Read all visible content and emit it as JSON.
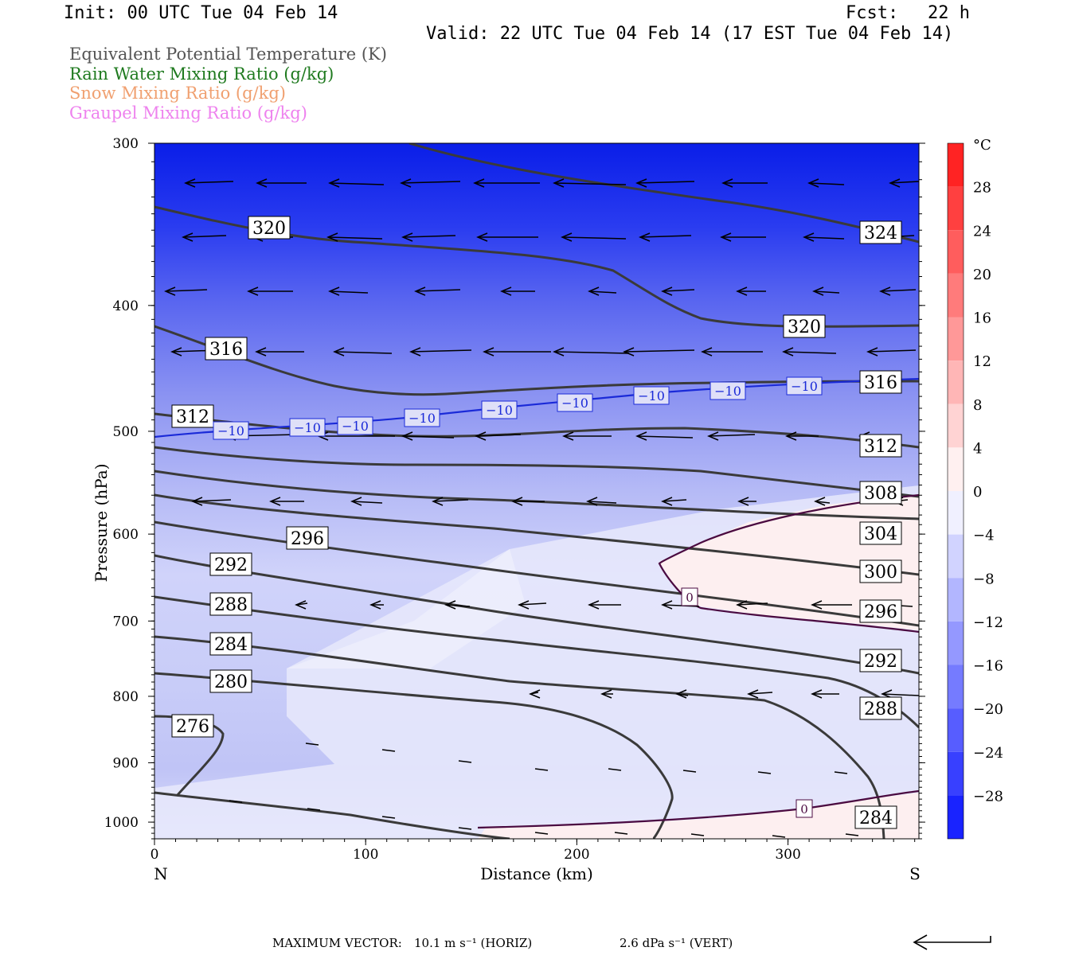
{
  "header": {
    "init": "Init: 00 UTC Tue 04 Feb 14",
    "fcst_label": "Fcst:",
    "fcst_value": "22 h",
    "valid": "Valid: 22 UTC Tue 04 Feb 14 (17 EST Tue 04 Feb 14)"
  },
  "legend": [
    {
      "text": "Equivalent Potential Temperature (K)",
      "color": "#555555"
    },
    {
      "text": "Rain Water Mixing Ratio (g/kg)",
      "color": "#1f7a1f"
    },
    {
      "text": "Snow Mixing Ratio (g/kg)",
      "color": "#f0a070"
    },
    {
      "text": "Graupel Mixing Ratio (g/kg)",
      "color": "#ee82ee"
    }
  ],
  "chart_data": {
    "type": "contour",
    "xlabel": "Distance (km)",
    "ylabel": "Pressure (hPa)",
    "xlim": [
      0,
      362
    ],
    "ylim": [
      300,
      1030
    ],
    "y_scale": "log-pressure (inverted)",
    "x_ticks": [
      "0",
      "100",
      "200",
      "300"
    ],
    "y_ticks": [
      "300",
      "400",
      "500",
      "600",
      "700",
      "800",
      "900",
      "1000"
    ],
    "x_end_labels": {
      "left": "N",
      "right": "S"
    },
    "theta_e_contours": [
      {
        "value": 276,
        "label": "276"
      },
      {
        "value": 280,
        "label": "280"
      },
      {
        "value": 284,
        "label": "284"
      },
      {
        "value": 288,
        "label": "288"
      },
      {
        "value": 292,
        "label": "292"
      },
      {
        "value": 296,
        "label": "296"
      },
      {
        "value": 300,
        "label": "300"
      },
      {
        "value": 304,
        "label": "304"
      },
      {
        "value": 308,
        "label": "308"
      },
      {
        "value": 312,
        "label": "312"
      },
      {
        "value": 316,
        "label": "316"
      },
      {
        "value": 320,
        "label": "320"
      },
      {
        "value": 324,
        "label": "324"
      }
    ],
    "temperature_contours": [
      {
        "value": -10,
        "label": "−10",
        "color": "#1a2ad8"
      },
      {
        "value": 0,
        "label": "0",
        "color": "#4a0a40"
      }
    ],
    "colorbar": {
      "unit": "°C",
      "labels": [
        "28",
        "24",
        "20",
        "16",
        "12",
        "8",
        "4",
        "0",
        "−4",
        "−8",
        "−12",
        "−16",
        "−20",
        "−24",
        "−28"
      ],
      "min": -32,
      "max": 32,
      "step": 4
    },
    "max_vector": {
      "label": "MAXIMUM VECTOR:",
      "horiz": "10.1 m s⁻¹ (HORIZ)",
      "vert": "2.6 dPa s⁻¹ (VERT)"
    }
  }
}
